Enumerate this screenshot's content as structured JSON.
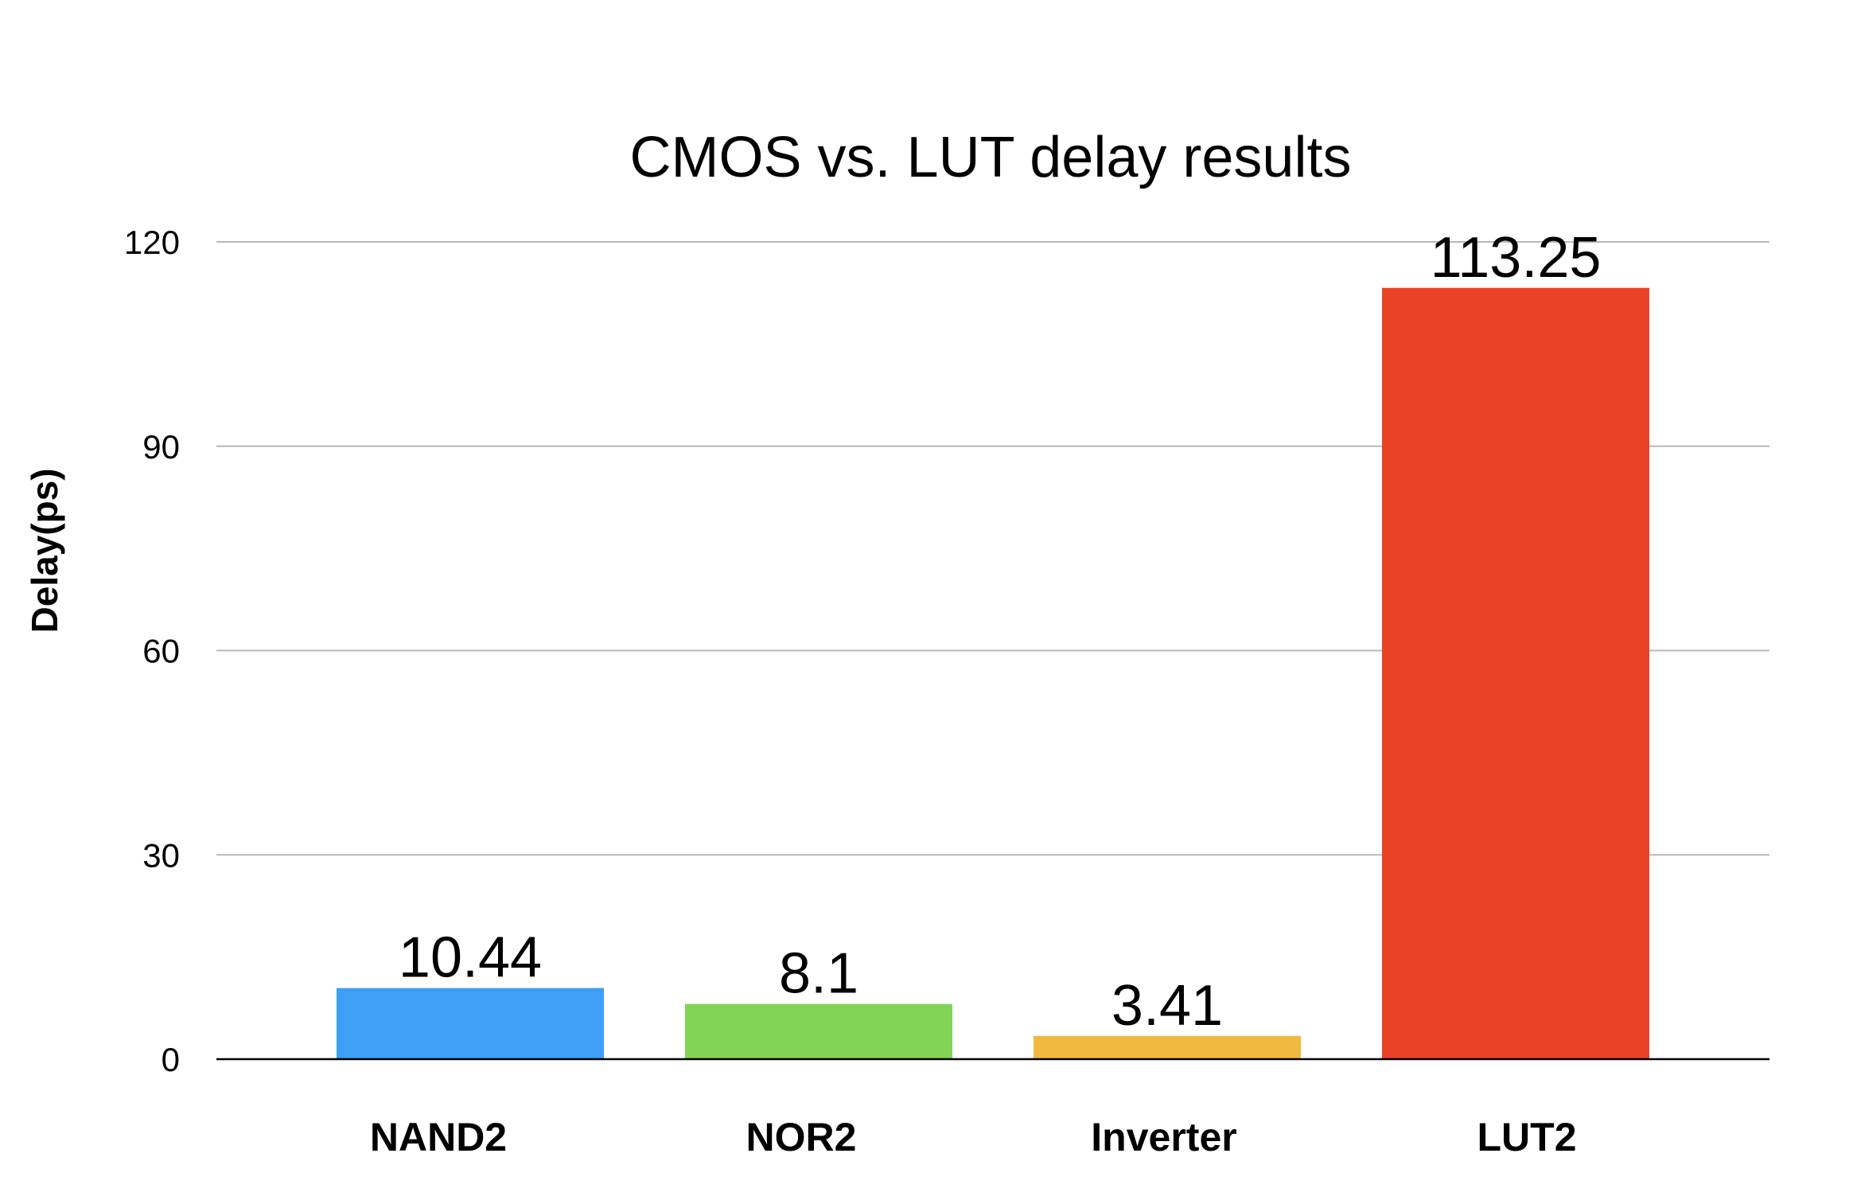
{
  "chart_data": {
    "type": "bar",
    "title": "CMOS vs. LUT delay results",
    "xlabel": "",
    "ylabel": "Delay(ps)",
    "categories": [
      "NAND2",
      "NOR2",
      "Inverter",
      "LUT2"
    ],
    "values": [
      10.44,
      8.1,
      3.41,
      113.25
    ],
    "data_labels": [
      "10.44",
      "8.1",
      "3.41",
      "113.25"
    ],
    "colors": [
      "#3d9ff5",
      "#82d454",
      "#f2b940",
      "#ea4227"
    ],
    "ylim": [
      0,
      120
    ],
    "yticks": [
      0,
      30,
      60,
      90,
      120
    ],
    "grid": true,
    "legend": "none"
  }
}
